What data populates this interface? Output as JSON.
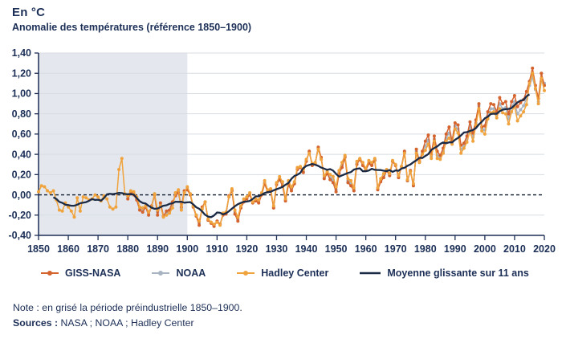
{
  "page": {
    "title": "En °C",
    "subtitle": "Anomalie des températures (référence 1850–1900)",
    "note": "Note : en grisé la période préindustrielle 1850–1900.",
    "sources_label": "Sources :",
    "sources_text": " NASA ; NOAA ; Hadley Center"
  },
  "colors": {
    "text_navy": "#1c2f57",
    "axis": "#1c2f57",
    "gridline": "#d8dde3",
    "preindustrial_shading": "#e4e8ee",
    "zero_dashed_line": "#111b2e",
    "giss_nasa": "#d4632e",
    "noaa": "#a9b4c2",
    "hadley": "#f0a33d",
    "moving_average": "#1b2a45"
  },
  "chart_data": {
    "type": "line",
    "title": "Anomalie des températures (référence 1850–1900)",
    "ylabel": "En °C",
    "xlim": [
      1850,
      2020
    ],
    "ylim": [
      -0.4,
      1.4
    ],
    "grid": true,
    "legend_position": "bottom",
    "zero_line": {
      "value": 0,
      "style": "dashed"
    },
    "shaded_region": {
      "from": 1850,
      "to": 1900,
      "meaning": "période préindustrielle 1850–1900"
    },
    "x_ticks": [
      1850,
      1860,
      1870,
      1880,
      1890,
      1900,
      1910,
      1920,
      1930,
      1940,
      1950,
      1960,
      1970,
      1980,
      1990,
      2000,
      2010,
      2020
    ],
    "y_ticks": [
      {
        "value": 1.4,
        "label": "1,40"
      },
      {
        "value": 1.2,
        "label": "1,20"
      },
      {
        "value": 1.0,
        "label": "1,00"
      },
      {
        "value": 0.8,
        "label": "0,80"
      },
      {
        "value": 0.6,
        "label": "0,60"
      },
      {
        "value": 0.4,
        "label": "0,40"
      },
      {
        "value": 0.2,
        "label": "0,20"
      },
      {
        "value": 0.0,
        "label": "0,00"
      },
      {
        "value": -0.2,
        "label": "-0,20"
      },
      {
        "value": -0.4,
        "label": "-0,40"
      }
    ],
    "series": [
      {
        "name": "GISS-NASA",
        "color": "#d4632e",
        "marker": "dot",
        "start_year": 1880,
        "values": [
          -0.04,
          0.02,
          0.0,
          -0.05,
          -0.15,
          -0.17,
          -0.12,
          -0.2,
          -0.11,
          0.0,
          -0.2,
          -0.08,
          -0.21,
          -0.16,
          -0.15,
          -0.07,
          -0.01,
          0.02,
          -0.12,
          0.04,
          0.05,
          0.0,
          -0.12,
          -0.21,
          -0.3,
          -0.12,
          -0.07,
          -0.25,
          -0.28,
          -0.31,
          -0.26,
          -0.29,
          -0.2,
          -0.19,
          -0.01,
          0.04,
          -0.19,
          -0.26,
          -0.13,
          -0.07,
          -0.04,
          0.0,
          -0.08,
          -0.06,
          -0.08,
          0.0,
          0.11,
          0.03,
          0.04,
          -0.13,
          0.1,
          0.15,
          0.09,
          -0.06,
          0.1,
          0.04,
          0.11,
          0.25,
          0.27,
          0.22,
          0.33,
          0.43,
          0.29,
          0.31,
          0.47,
          0.37,
          0.16,
          0.21,
          0.15,
          0.12,
          0.03,
          0.21,
          0.27,
          0.37,
          0.12,
          0.09,
          0.04,
          0.3,
          0.35,
          0.29,
          0.24,
          0.31,
          0.29,
          0.34,
          0.05,
          0.13,
          0.17,
          0.24,
          0.19,
          0.33,
          0.29,
          0.17,
          0.28,
          0.43,
          0.14,
          0.24,
          0.09,
          0.45,
          0.33,
          0.43,
          0.53,
          0.59,
          0.4,
          0.58,
          0.43,
          0.39,
          0.46,
          0.6,
          0.67,
          0.53,
          0.71,
          0.69,
          0.49,
          0.51,
          0.58,
          0.72,
          0.61,
          0.74,
          0.9,
          0.67,
          0.68,
          0.82,
          0.9,
          0.89,
          0.82,
          0.96,
          0.9,
          0.92,
          0.8,
          0.92,
          0.98,
          0.87,
          0.91,
          0.94,
          1.02,
          1.12,
          1.25,
          1.08,
          0.95,
          1.2,
          1.08
        ]
      },
      {
        "name": "NOAA",
        "color": "#a9b4c2",
        "marker": "dot",
        "start_year": 1880,
        "values": [
          -0.02,
          0.03,
          0.01,
          -0.03,
          -0.13,
          -0.15,
          -0.11,
          -0.18,
          -0.12,
          0.01,
          -0.17,
          -0.1,
          -0.21,
          -0.18,
          -0.16,
          -0.1,
          0.01,
          0.03,
          -0.13,
          0.03,
          0.07,
          0.01,
          -0.11,
          -0.2,
          -0.28,
          -0.13,
          -0.07,
          -0.24,
          -0.27,
          -0.3,
          -0.26,
          -0.29,
          -0.19,
          -0.18,
          -0.02,
          0.05,
          -0.17,
          -0.24,
          -0.12,
          -0.05,
          -0.03,
          0.01,
          -0.07,
          -0.05,
          -0.06,
          0.01,
          0.12,
          0.04,
          0.05,
          -0.12,
          0.11,
          0.16,
          0.11,
          -0.05,
          0.12,
          0.06,
          0.12,
          0.26,
          0.27,
          0.23,
          0.34,
          0.42,
          0.3,
          0.31,
          0.46,
          0.36,
          0.17,
          0.22,
          0.17,
          0.15,
          0.05,
          0.22,
          0.29,
          0.38,
          0.14,
          0.11,
          0.05,
          0.31,
          0.35,
          0.3,
          0.25,
          0.32,
          0.3,
          0.35,
          0.06,
          0.14,
          0.19,
          0.24,
          0.2,
          0.33,
          0.29,
          0.18,
          0.28,
          0.42,
          0.14,
          0.23,
          0.1,
          0.43,
          0.32,
          0.41,
          0.48,
          0.54,
          0.38,
          0.55,
          0.39,
          0.37,
          0.43,
          0.56,
          0.61,
          0.51,
          0.68,
          0.65,
          0.45,
          0.48,
          0.55,
          0.67,
          0.57,
          0.71,
          0.88,
          0.65,
          0.64,
          0.78,
          0.85,
          0.85,
          0.79,
          0.9,
          0.85,
          0.86,
          0.75,
          0.87,
          0.92,
          0.8,
          0.84,
          0.88,
          0.95,
          1.08,
          1.16,
          1.04,
          0.92,
          1.12,
          1.1
        ]
      },
      {
        "name": "Hadley Center",
        "color": "#f0a33d",
        "marker": "dot",
        "start_year": 1850,
        "values": [
          0.03,
          0.09,
          0.08,
          0.04,
          0.02,
          0.04,
          -0.05,
          -0.15,
          -0.16,
          -0.08,
          -0.12,
          -0.16,
          -0.22,
          -0.03,
          -0.16,
          -0.02,
          -0.03,
          -0.05,
          -0.04,
          0.0,
          -0.02,
          -0.06,
          -0.01,
          -0.04,
          -0.12,
          -0.14,
          -0.12,
          0.25,
          0.36,
          0.01,
          -0.01,
          0.04,
          0.03,
          -0.02,
          -0.12,
          -0.13,
          -0.11,
          -0.17,
          -0.12,
          0.01,
          -0.15,
          -0.11,
          -0.22,
          -0.2,
          -0.18,
          -0.13,
          0.02,
          0.05,
          -0.15,
          0.02,
          0.08,
          0.01,
          -0.11,
          -0.2,
          -0.26,
          -0.14,
          -0.07,
          -0.24,
          -0.27,
          -0.29,
          -0.27,
          -0.3,
          -0.18,
          -0.17,
          -0.02,
          0.06,
          -0.15,
          -0.22,
          -0.11,
          -0.04,
          -0.02,
          0.02,
          -0.07,
          -0.04,
          -0.05,
          0.02,
          0.14,
          0.05,
          0.06,
          -0.11,
          0.12,
          0.18,
          0.13,
          -0.04,
          0.14,
          0.08,
          0.13,
          0.27,
          0.28,
          0.25,
          0.35,
          0.41,
          0.31,
          0.32,
          0.45,
          0.35,
          0.19,
          0.23,
          0.2,
          0.18,
          0.08,
          0.24,
          0.32,
          0.39,
          0.16,
          0.14,
          0.07,
          0.33,
          0.36,
          0.32,
          0.26,
          0.34,
          0.32,
          0.36,
          0.07,
          0.16,
          0.21,
          0.25,
          0.21,
          0.34,
          0.3,
          0.19,
          0.28,
          0.41,
          0.15,
          0.23,
          0.11,
          0.41,
          0.32,
          0.4,
          0.44,
          0.5,
          0.36,
          0.53,
          0.36,
          0.35,
          0.41,
          0.53,
          0.56,
          0.5,
          0.65,
          0.61,
          0.41,
          0.46,
          0.52,
          0.63,
          0.53,
          0.69,
          0.85,
          0.63,
          0.6,
          0.75,
          0.81,
          0.82,
          0.76,
          0.85,
          0.81,
          0.8,
          0.7,
          0.82,
          0.87,
          0.73,
          0.78,
          0.82,
          0.89,
          1.1,
          1.2,
          1.05,
          0.9,
          1.15,
          1.03
        ]
      },
      {
        "name": "Moyenne glissante sur 11 ans",
        "color": "#1b2a45",
        "marker": "none",
        "type": "moving_average",
        "window": 11
      }
    ]
  }
}
